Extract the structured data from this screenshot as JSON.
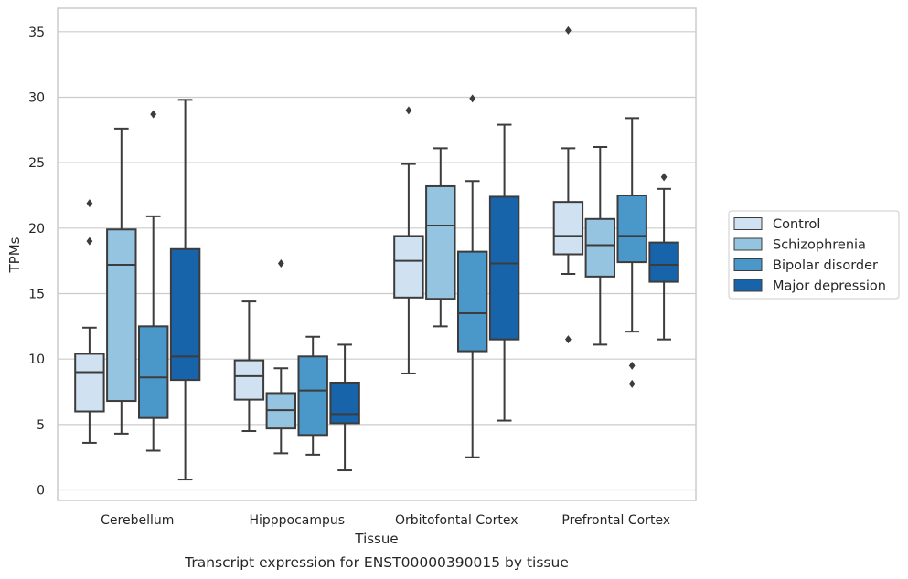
{
  "chart_data": {
    "type": "box",
    "caption": "Transcript expression for ENST00000390015 by tissue",
    "xlabel": "Tissue",
    "ylabel": "TPMs",
    "ylim": [
      -0.8,
      36.8
    ],
    "yticks": [
      0,
      5,
      10,
      15,
      20,
      25,
      30,
      35
    ],
    "grid": "horizontal",
    "legend_placement": "right",
    "categories": [
      "Cerebellum",
      "Hipppocampus",
      "Orbitofontal Cortex",
      "Prefrontal Cortex"
    ],
    "series": [
      {
        "name": "Control",
        "color": "#d0e1f2",
        "boxes": [
          {
            "whisker_low": 3.6,
            "q1": 6.0,
            "median": 9.0,
            "q3": 10.4,
            "whisker_high": 12.4,
            "outliers": [
              19.0,
              21.9
            ]
          },
          {
            "whisker_low": 4.5,
            "q1": 6.9,
            "median": 8.7,
            "q3": 9.9,
            "whisker_high": 14.4,
            "outliers": []
          },
          {
            "whisker_low": 8.9,
            "q1": 14.7,
            "median": 17.5,
            "q3": 19.4,
            "whisker_high": 24.9,
            "outliers": [
              29.0
            ]
          },
          {
            "whisker_low": 16.5,
            "q1": 18.0,
            "median": 19.4,
            "q3": 22.0,
            "whisker_high": 26.1,
            "outliers": [
              11.5,
              35.1
            ]
          }
        ]
      },
      {
        "name": "Schizophrenia",
        "color": "#94c4df",
        "boxes": [
          {
            "whisker_low": 4.3,
            "q1": 6.8,
            "median": 17.2,
            "q3": 19.9,
            "whisker_high": 27.6,
            "outliers": []
          },
          {
            "whisker_low": 2.8,
            "q1": 4.7,
            "median": 6.1,
            "q3": 7.4,
            "whisker_high": 9.3,
            "outliers": [
              17.3
            ]
          },
          {
            "whisker_low": 12.5,
            "q1": 14.6,
            "median": 20.2,
            "q3": 23.2,
            "whisker_high": 26.1,
            "outliers": []
          },
          {
            "whisker_low": 11.1,
            "q1": 16.3,
            "median": 18.7,
            "q3": 20.7,
            "whisker_high": 26.2,
            "outliers": []
          }
        ]
      },
      {
        "name": "Bipolar disorder",
        "color": "#4a98c9",
        "boxes": [
          {
            "whisker_low": 3.0,
            "q1": 5.5,
            "median": 8.6,
            "q3": 12.5,
            "whisker_high": 20.9,
            "outliers": [
              28.7
            ]
          },
          {
            "whisker_low": 2.7,
            "q1": 4.2,
            "median": 7.6,
            "q3": 10.2,
            "whisker_high": 11.7,
            "outliers": []
          },
          {
            "whisker_low": 2.5,
            "q1": 10.6,
            "median": 13.5,
            "q3": 18.2,
            "whisker_high": 23.6,
            "outliers": [
              29.9
            ]
          },
          {
            "whisker_low": 12.1,
            "q1": 17.4,
            "median": 19.4,
            "q3": 22.5,
            "whisker_high": 28.4,
            "outliers": [
              8.1,
              9.5
            ]
          }
        ]
      },
      {
        "name": "Major depression",
        "color": "#1764ab",
        "boxes": [
          {
            "whisker_low": 0.8,
            "q1": 8.4,
            "median": 10.2,
            "q3": 18.4,
            "whisker_high": 29.8,
            "outliers": []
          },
          {
            "whisker_low": 1.5,
            "q1": 5.1,
            "median": 5.8,
            "q3": 8.2,
            "whisker_high": 11.1,
            "outliers": []
          },
          {
            "whisker_low": 5.3,
            "q1": 11.5,
            "median": 17.3,
            "q3": 22.4,
            "whisker_high": 27.9,
            "outliers": []
          },
          {
            "whisker_low": 11.5,
            "q1": 15.9,
            "median": 17.2,
            "q3": 18.9,
            "whisker_high": 23.0,
            "outliers": [
              23.9
            ]
          }
        ]
      }
    ]
  },
  "colors": {
    "grid": "#cccccc",
    "frame": "#cccccc",
    "box_edge": "#3c3c3c",
    "text": "#262626"
  }
}
